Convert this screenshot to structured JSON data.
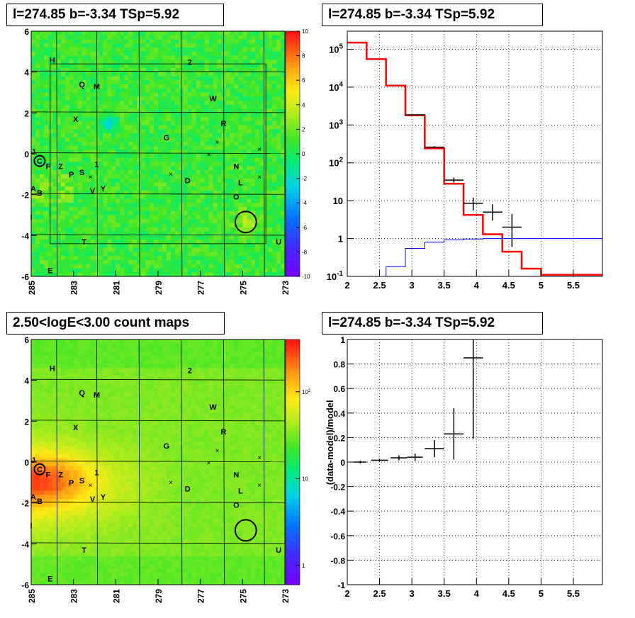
{
  "chart_data": [
    {
      "type": "heatmap",
      "title": "l=274.85 b=-3.34 TSp=5.92",
      "xlim": [
        285,
        273
      ],
      "ylim": [
        -6,
        6
      ],
      "xticks": [
        "285",
        "283",
        "281",
        "279",
        "277",
        "275",
        "273"
      ],
      "yticks": [
        "6",
        "4",
        "2",
        "0",
        "-2",
        "-4",
        "-6"
      ],
      "colorbar": {
        "scale": "linear",
        "range": [
          -10,
          10
        ],
        "ticks": [
          "10",
          "8",
          "6",
          "4",
          "2",
          "0",
          "-2",
          "-4",
          "-6",
          "-8",
          "-10"
        ]
      },
      "sources": [
        {
          "label": "H",
          "l": 284.0,
          "b": 4.6
        },
        {
          "label": "2",
          "l": 277.5,
          "b": 4.5
        },
        {
          "label": "Q",
          "l": 282.6,
          "b": 3.4
        },
        {
          "label": "M",
          "l": 281.9,
          "b": 3.3
        },
        {
          "label": "W",
          "l": 276.4,
          "b": 2.7
        },
        {
          "label": "X",
          "l": 282.9,
          "b": 1.7
        },
        {
          "label": "R",
          "l": 275.9,
          "b": 1.5
        },
        {
          "label": "G",
          "l": 278.6,
          "b": 0.8
        },
        {
          "label": "J",
          "l": 284.9,
          "b": 0.1
        },
        {
          "label": "C",
          "l": 284.6,
          "b": -0.35
        },
        {
          "label": "F",
          "l": 284.2,
          "b": -0.6
        },
        {
          "label": "Z",
          "l": 283.6,
          "b": -0.6
        },
        {
          "label": "1",
          "l": 281.9,
          "b": -0.5
        },
        {
          "label": "N",
          "l": 275.3,
          "b": -0.6
        },
        {
          "label": "P",
          "l": 283.1,
          "b": -1.0
        },
        {
          "label": "S",
          "l": 282.6,
          "b": -0.9
        },
        {
          "label": "D",
          "l": 277.6,
          "b": -1.3
        },
        {
          "label": "L",
          "l": 275.1,
          "b": -1.4
        },
        {
          "label": "A",
          "l": 284.9,
          "b": -1.7
        },
        {
          "label": "B",
          "l": 284.6,
          "b": -1.9
        },
        {
          "label": "Y",
          "l": 281.6,
          "b": -1.7
        },
        {
          "label": "V",
          "l": 282.1,
          "b": -1.8
        },
        {
          "label": "O",
          "l": 275.3,
          "b": -2.1
        },
        {
          "label": "I",
          "l": 285.0,
          "b": -3.1
        },
        {
          "label": "T",
          "l": 282.5,
          "b": -4.3
        },
        {
          "label": "U",
          "l": 273.3,
          "b": -4.3
        },
        {
          "label": "E",
          "l": 284.1,
          "b": -5.7
        }
      ],
      "crosses": [
        [
          276.2,
          0.55
        ],
        [
          276.6,
          -0.05
        ],
        [
          278.4,
          -1.0
        ],
        [
          282.2,
          -1.15
        ],
        [
          274.2,
          0.2
        ],
        [
          274.2,
          -1.15
        ]
      ],
      "circles": [
        {
          "l": 284.6,
          "b": -0.35,
          "r": 0.25
        },
        {
          "l": 274.85,
          "b": -3.34,
          "r": 0.5
        }
      ],
      "roi": {
        "l": [
          284.1,
          273.9
        ],
        "b": [
          -4.4,
          4.4
        ]
      },
      "grid_lines_l": [
        283.8,
        281.9,
        279.9,
        277.9,
        275.9,
        274.0
      ],
      "grid_lines_b": [
        4.05,
        2.05,
        0.05,
        -1.95,
        -3.95
      ]
    },
    {
      "type": "line",
      "title": "l=274.85 b=-3.34 TSp=5.92",
      "xscale": "linear",
      "yscale": "log",
      "xlim": [
        2.0,
        5.95
      ],
      "ylim": [
        0.1,
        300000
      ],
      "xticks": [
        "2",
        "2.5",
        "3",
        "3.5",
        "4",
        "4.5",
        "5",
        "5.5"
      ],
      "yticks": [
        "10^5",
        "10^4",
        "10^3",
        "10^2",
        "10",
        "1",
        "10^-1"
      ],
      "grid": true,
      "series": [
        {
          "kind": "step",
          "color": "#ff0000",
          "edges": [
            2.0,
            2.3,
            2.6,
            2.9,
            3.2,
            3.5,
            3.8,
            4.1,
            4.4,
            4.7,
            5.0,
            5.95
          ],
          "values": [
            150000,
            55000,
            11000,
            1800,
            240,
            28,
            4.2,
            1.3,
            0.45,
            0.16,
            0.11
          ]
        },
        {
          "kind": "step",
          "color": "#0000ff",
          "edges": [
            2.6,
            2.9,
            3.2,
            3.5,
            3.8,
            4.1,
            5.95
          ],
          "values": [
            0.18,
            0.55,
            0.8,
            0.92,
            0.97,
            1.0
          ]
        },
        {
          "kind": "errorbar",
          "color": "#000000",
          "points": [
            {
              "x": 3.05,
              "xerr": 0.15,
              "y": 1850,
              "ylo": 1850,
              "yhi": 1850
            },
            {
              "x": 3.35,
              "xerr": 0.15,
              "y": 260,
              "ylo": 245,
              "yhi": 275
            },
            {
              "x": 3.65,
              "xerr": 0.15,
              "y": 35,
              "ylo": 30,
              "yhi": 41
            },
            {
              "x": 3.95,
              "xerr": 0.15,
              "y": 8.5,
              "ylo": 5.5,
              "yhi": 12
            },
            {
              "x": 4.25,
              "xerr": 0.15,
              "y": 5,
              "ylo": 3,
              "yhi": 8
            },
            {
              "x": 4.55,
              "xerr": 0.15,
              "y": 2,
              "ylo": 0.6,
              "yhi": 4.5
            }
          ]
        }
      ]
    },
    {
      "type": "heatmap",
      "title": "2.50<logE<3.00 count maps",
      "xlim": [
        285,
        273
      ],
      "ylim": [
        -6,
        6
      ],
      "xticks": [
        "285",
        "283",
        "281",
        "279",
        "277",
        "275",
        "273"
      ],
      "yticks": [
        "6",
        "4",
        "2",
        "0",
        "-2",
        "-4",
        "-6"
      ],
      "colorbar": {
        "scale": "log",
        "range": [
          0.6,
          400
        ],
        "ticks": [
          "10^2",
          "10",
          "1"
        ]
      },
      "sources": "same-as-panel-1",
      "circles": [
        {
          "l": 284.6,
          "b": -0.35,
          "r": 0.25
        },
        {
          "l": 274.85,
          "b": -3.34,
          "r": 0.5
        }
      ]
    },
    {
      "type": "scatter",
      "title": "l=274.85 b=-3.34 TSp=5.92",
      "ylabel": "(data-model)/model",
      "xlim": [
        2.0,
        5.95
      ],
      "ylim": [
        -1.0,
        1.0
      ],
      "xticks": [
        "2",
        "2.5",
        "3",
        "3.5",
        "4",
        "4.5",
        "5",
        "5.5"
      ],
      "yticks": [
        "1",
        "0.8",
        "0.6",
        "0.4",
        "0.2",
        "0",
        "-0.2",
        "-0.4",
        "-0.6",
        "-0.8",
        "-1"
      ],
      "grid": true,
      "points": [
        {
          "x": 2.2,
          "xerr": 0.1,
          "y": 0.0,
          "yerr": 0.01
        },
        {
          "x": 2.5,
          "xerr": 0.13,
          "y": 0.015,
          "yerr": 0.01
        },
        {
          "x": 2.8,
          "xerr": 0.13,
          "y": 0.035,
          "yerr": 0.02
        },
        {
          "x": 3.05,
          "xerr": 0.12,
          "y": 0.04,
          "yerr": 0.03
        },
        {
          "x": 3.35,
          "xerr": 0.15,
          "y": 0.11,
          "yerr": 0.07
        },
        {
          "x": 3.65,
          "xerr": 0.15,
          "y": 0.23,
          "yerr": 0.21
        },
        {
          "x": 3.95,
          "xerr": 0.15,
          "y": 0.85,
          "yerr": 0.66
        }
      ]
    }
  ]
}
